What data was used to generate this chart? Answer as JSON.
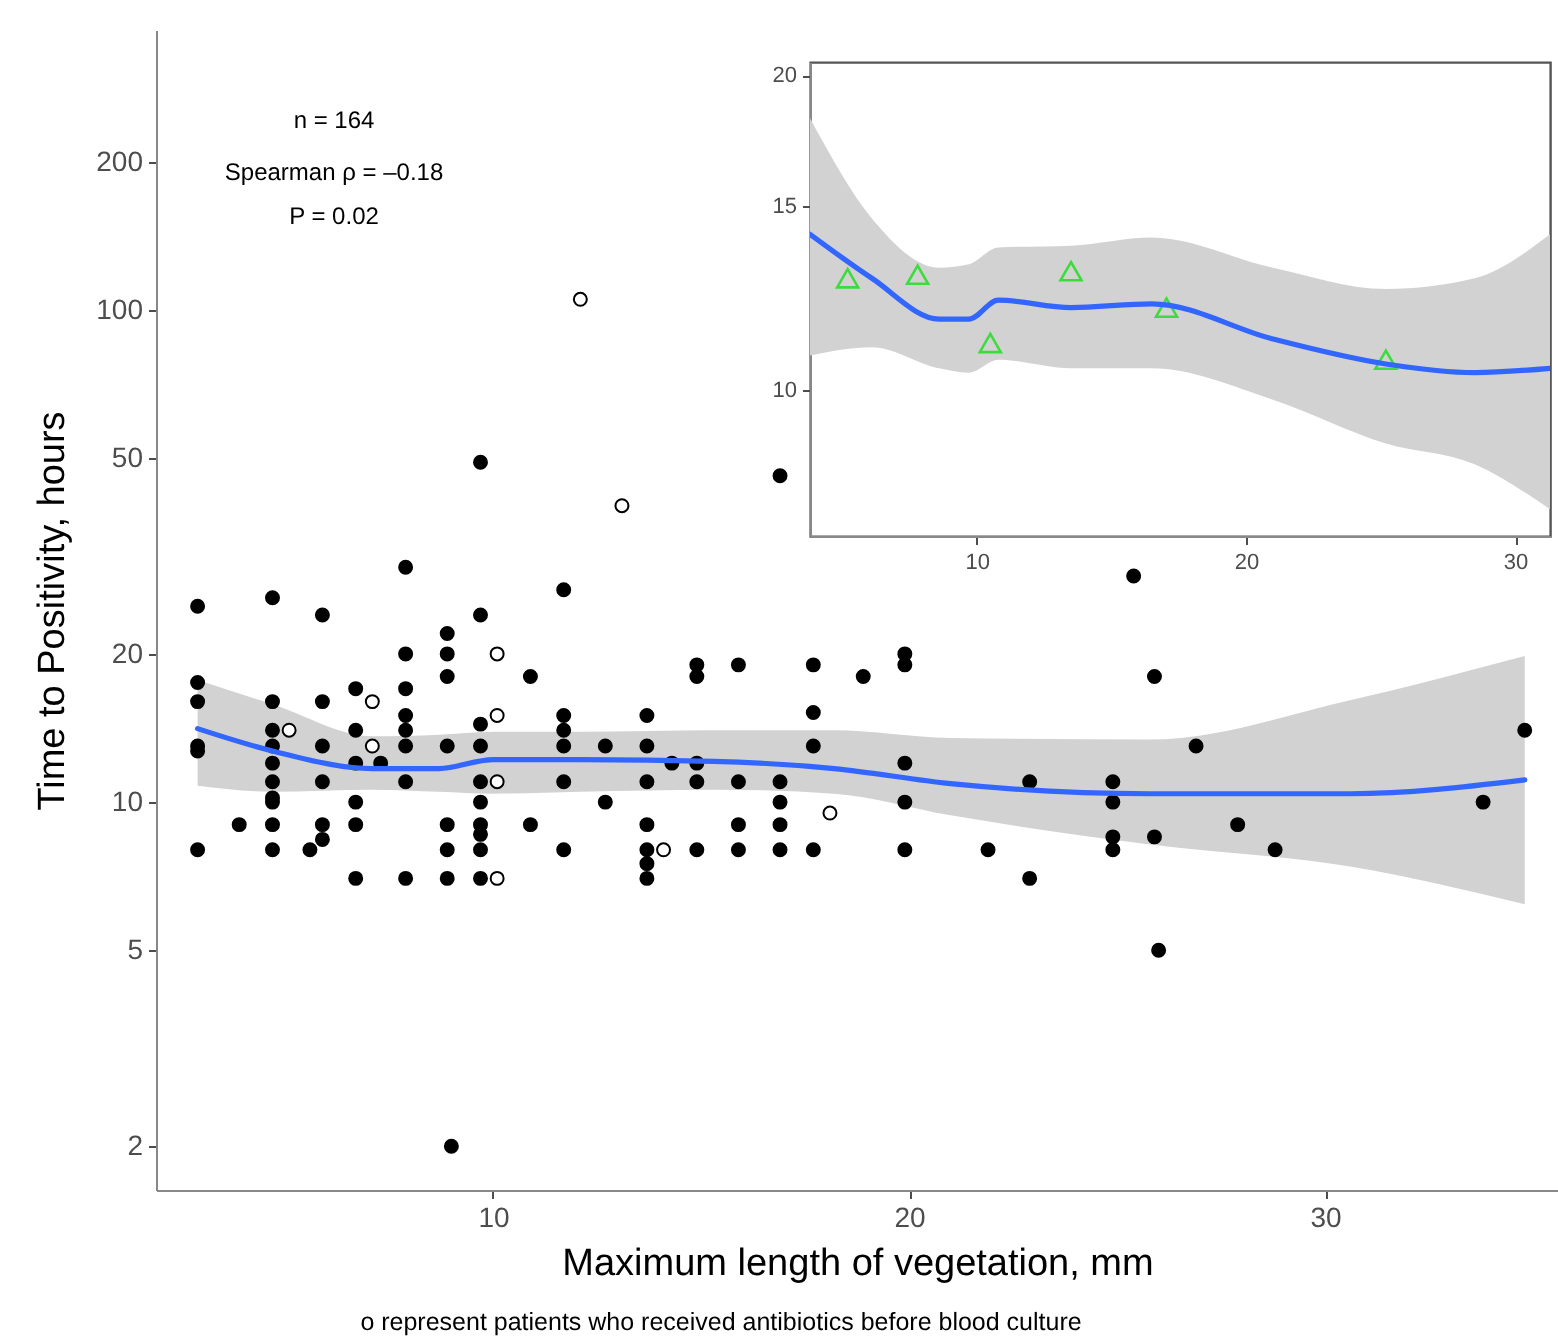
{
  "chart_data": [
    {
      "type": "scatter",
      "xlabel": "Maximum length of vegetation, mm",
      "ylabel": "Time to Positivity, hours",
      "log": "y",
      "marker": "circle",
      "xlim": [
        1.9,
        35.6
      ],
      "ylim": [
        1.63,
        370
      ],
      "xticks": [
        10,
        20,
        30
      ],
      "yticks": [
        2,
        5,
        10,
        20,
        50,
        100,
        200
      ],
      "annotations": [
        "n = 164",
        "Spearman ρ = –0.18",
        "P = 0.02",
        "o represent patients who received antibiotics before blood culture"
      ],
      "series": [
        {
          "color": "#000000",
          "x": [
            2.9,
            2.9,
            2.9,
            2.9,
            2.9,
            2.9,
            3.9,
            4.7,
            4.7,
            4.7,
            4.7,
            4.7,
            4.7,
            4.7,
            4.7,
            4.7,
            4.7,
            5.6,
            5.9,
            5.9,
            5.9,
            5.9,
            5.9,
            5.9,
            6.7,
            6.7,
            6.7,
            6.7,
            6.7,
            6.7,
            7.3,
            7.9,
            7.9,
            7.9,
            7.9,
            7.9,
            7.9,
            7.9,
            7.9,
            8.9,
            8.9,
            8.9,
            8.9,
            8.9,
            8.9,
            8.9,
            9,
            9.7,
            9.7,
            9.7,
            9.7,
            9.7,
            9.7,
            9.7,
            9.7,
            9.7,
            9.7,
            10.9,
            10.9,
            11.7,
            11.7,
            11.7,
            11.7,
            11.7,
            11.7,
            12.7,
            12.7,
            13.7,
            13.7,
            13.7,
            13.7,
            13.7,
            13.7,
            13.7,
            14.3,
            14.9,
            14.9,
            14.9,
            14.9,
            14.9,
            15.9,
            15.9,
            15.9,
            15.9,
            16.9,
            16.9,
            16.9,
            16.9,
            16.9,
            17.7,
            17.7,
            17.7,
            17.7,
            18.9,
            19.9,
            19.9,
            19.9,
            19.9,
            19.9,
            21.9,
            22.9,
            22.9,
            24.9,
            24.9,
            24.9,
            24.9,
            25.4,
            25.9,
            25.9,
            26,
            26.9,
            27.9,
            28.8,
            33.8,
            34.8
          ],
          "values": [
            25,
            17.5,
            16,
            13,
            12.7,
            8,
            9,
            26,
            16,
            14,
            13,
            12,
            11,
            10.2,
            10,
            9,
            8,
            8,
            24,
            16,
            13,
            11,
            9,
            8.4,
            17,
            14,
            12,
            10,
            9,
            7,
            12,
            30,
            20,
            17,
            15,
            14,
            13,
            11,
            7,
            22,
            20,
            18,
            13,
            9,
            8,
            7,
            2,
            49,
            24,
            14.4,
            13,
            11,
            10,
            9,
            8.6,
            8,
            7,
            18,
            9,
            27,
            15,
            14,
            13,
            11,
            8,
            13,
            10,
            15,
            13,
            11,
            9,
            8,
            7.5,
            7,
            12,
            19,
            18,
            12,
            11,
            8,
            19,
            11,
            9,
            8,
            46,
            11,
            10,
            9,
            8,
            19,
            15.2,
            13,
            8,
            18,
            20,
            19,
            12,
            10,
            8,
            8,
            11,
            7,
            11,
            10,
            8.5,
            8,
            28.8,
            18,
            8.5,
            5,
            13,
            9,
            8,
            10,
            14
          ]
        },
        {
          "color": "#ffffff",
          "x": [
            5.1,
            7.1,
            7.1,
            10.1,
            10.1,
            10.1,
            10.1,
            12.1,
            13.1,
            14.1,
            18.1
          ],
          "values": [
            14,
            16,
            13,
            20,
            15,
            11,
            7,
            105,
            40,
            8,
            9.5
          ]
        },
        {
          "type": "line",
          "marker": "none",
          "color": "#3366ff",
          "x": [
            2.9,
            4.7,
            7.1,
            8.7,
            10,
            12.1,
            15.3,
            18.2,
            21,
            25.8,
            30.6,
            34.8
          ],
          "values": [
            14.1,
            12.7,
            11.7,
            11.7,
            12.2,
            12.2,
            12.1,
            11.7,
            10.9,
            10.4,
            10.4,
            11.1
          ],
          "lower": [
            10.8,
            10.5,
            10.6,
            10.5,
            10.4,
            10.5,
            10.6,
            10.4,
            9.4,
            8.2,
            7.4,
            6.2
          ],
          "upper": [
            17.7,
            15.8,
            13.6,
            13.7,
            13.9,
            13.9,
            14,
            14,
            13.5,
            13.4,
            16.1,
            19.8
          ]
        }
      ]
    },
    {
      "type": "line",
      "log": "y",
      "xlim": [
        3.8,
        31.3
      ],
      "ylim": [
        7.26,
        20.6
      ],
      "xticks": [
        10,
        20,
        30
      ],
      "yticks": [
        10,
        15,
        20
      ],
      "series": [
        {
          "color": "#3366ff",
          "marker": "none",
          "x": [
            3.8,
            6.1,
            8.6,
            9.7,
            10.8,
            13.5,
            16.5,
            21,
            25.2,
            28.5,
            31.3
          ],
          "values": [
            14.1,
            12.8,
            11.7,
            11.7,
            12.2,
            12,
            12.1,
            11.2,
            10.6,
            10.4,
            10.5
          ],
          "lower": [
            10.8,
            11,
            10.5,
            10.4,
            10.7,
            10.5,
            10.5,
            9.8,
            8.9,
            8.5,
            7.7
          ],
          "upper": [
            18.2,
            14.6,
            13.1,
            13.2,
            13.7,
            13.75,
            14,
            13.1,
            12.5,
            12.8,
            14.1
          ]
        },
        {
          "type": "scatter",
          "marker": "triangle",
          "color": "#00e000",
          "x": [
            5.2,
            7.8,
            10.5,
            13.5,
            17.05,
            25.2
          ],
          "values": [
            12.8,
            12.9,
            11.1,
            13,
            12,
            10.7
          ]
        }
      ]
    }
  ]
}
